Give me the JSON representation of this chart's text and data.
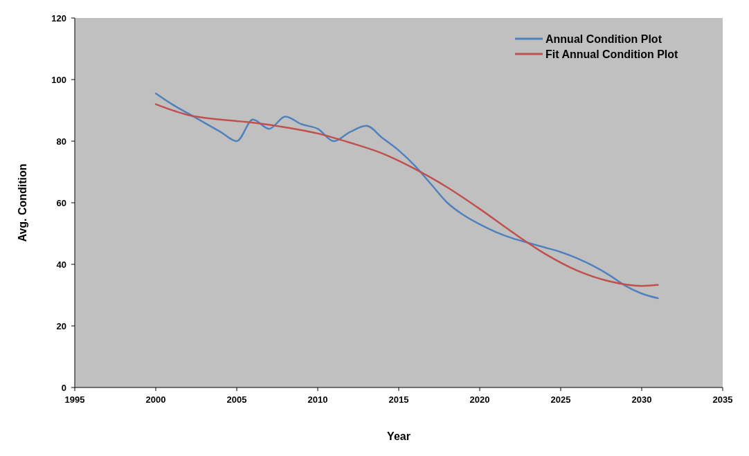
{
  "chart_data": {
    "type": "line",
    "xlabel": "Year",
    "ylabel": "Avg. Condition",
    "xlim": [
      1995,
      2035
    ],
    "xticks": [
      1995,
      2000,
      2005,
      2010,
      2015,
      2020,
      2025,
      2030,
      2035
    ],
    "ylim": [
      0,
      120
    ],
    "yticks": [
      0,
      20,
      40,
      60,
      80,
      100,
      120
    ],
    "grid": false,
    "legend": "top right",
    "marker": "none",
    "line_style": "solid",
    "series": [
      {
        "name": "Annual Condition Plot",
        "color": "#4f81bd",
        "x": [
          2000,
          2001,
          2002,
          2003,
          2004,
          2005,
          2006,
          2007,
          2008,
          2009,
          2010,
          2011,
          2012,
          2013,
          2014,
          2015,
          2016,
          2017,
          2018,
          2019,
          2020,
          2021,
          2022,
          2023,
          2024,
          2025,
          2026,
          2027,
          2028,
          2029,
          2030,
          2031
        ],
        "values": [
          95.5,
          92,
          89,
          86,
          83,
          80,
          87,
          84,
          88,
          85.5,
          84,
          80,
          83,
          85,
          81,
          77,
          72,
          66,
          60,
          56,
          53,
          50.5,
          48.5,
          47,
          45.5,
          44,
          42,
          39.5,
          36.5,
          33,
          30.5,
          29
        ]
      },
      {
        "name": "Fit Annual Condition Plot",
        "color": "#c0504d",
        "x": [
          2000,
          2002,
          2004,
          2006,
          2008,
          2010,
          2012,
          2014,
          2016,
          2018,
          2020,
          2022,
          2024,
          2026,
          2028,
          2030,
          2031
        ],
        "values": [
          92,
          88.5,
          87,
          86,
          84.5,
          82.5,
          79.5,
          76,
          71,
          65,
          58,
          50.5,
          43.5,
          38,
          34.5,
          33,
          33.3
        ]
      }
    ]
  }
}
